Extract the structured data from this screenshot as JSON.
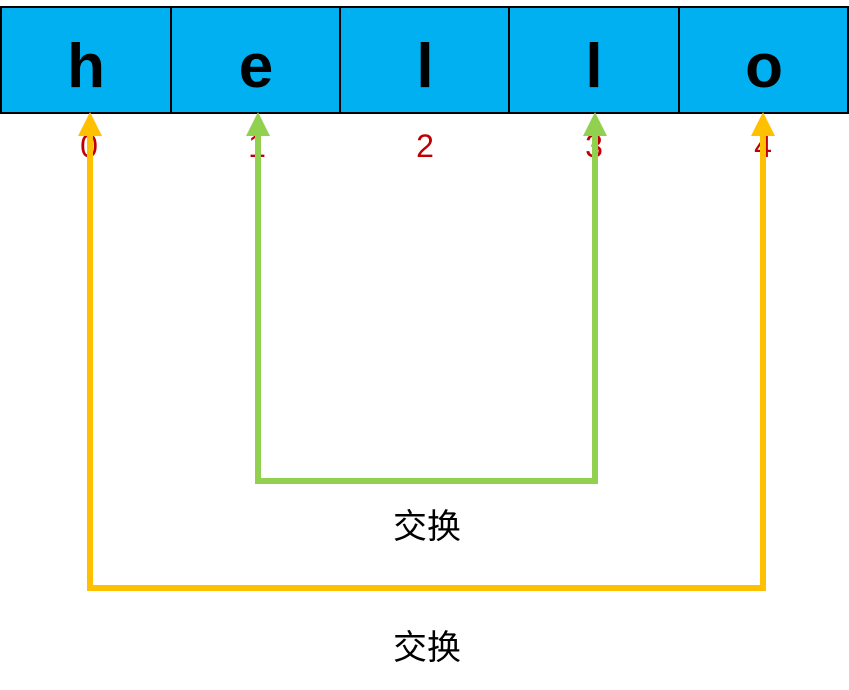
{
  "array": {
    "cells": [
      {
        "char": "h",
        "index": "0"
      },
      {
        "char": "e",
        "index": "1"
      },
      {
        "char": "l",
        "index": "2"
      },
      {
        "char": "l",
        "index": "3"
      },
      {
        "char": "o",
        "index": "4"
      }
    ]
  },
  "swaps": [
    {
      "label": "交换",
      "from": 1,
      "to": 3,
      "color": "#92d050"
    },
    {
      "label": "交换",
      "from": 0,
      "to": 4,
      "color": "#ffc000"
    }
  ],
  "colors": {
    "cell_fill": "#00b0f0",
    "index_text": "#c00000"
  }
}
